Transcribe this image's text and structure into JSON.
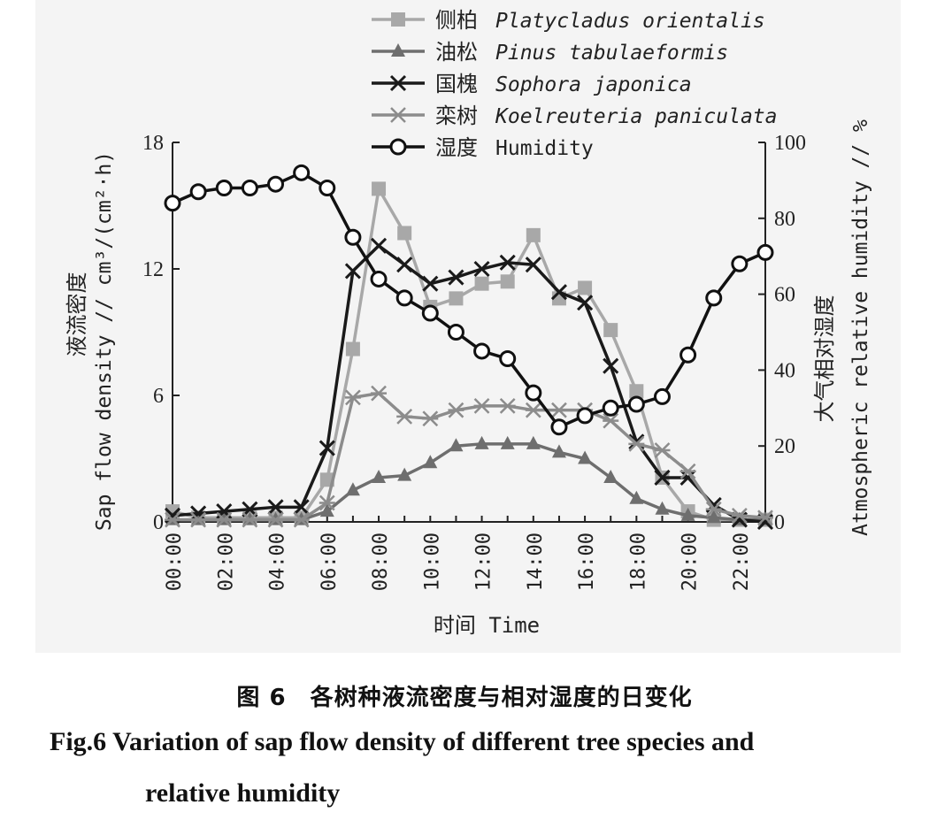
{
  "chart_data": {
    "type": "line",
    "x": [
      "00:00",
      "01:00",
      "02:00",
      "03:00",
      "04:00",
      "05:00",
      "06:00",
      "07:00",
      "08:00",
      "09:00",
      "10:00",
      "11:00",
      "12:00",
      "13:00",
      "14:00",
      "15:00",
      "16:00",
      "17:00",
      "18:00",
      "19:00",
      "20:00",
      "21:00",
      "22:00",
      "23:00"
    ],
    "x_tick_labels": [
      "00:00",
      "02:00",
      "04:00",
      "06:00",
      "08:00",
      "10:00",
      "12:00",
      "14:00",
      "16:00",
      "18:00",
      "20:00",
      "22:00"
    ],
    "xlabel": "时间 Time",
    "ylabel_left": [
      "液流密度",
      "Sap flow density // cm³/(cm²·h)"
    ],
    "ylabel_right": [
      "大气相对湿度",
      "Atmospheric relative humidity // %"
    ],
    "ylim_left": [
      0,
      18
    ],
    "ylim_right": [
      0,
      100
    ],
    "yticks_left": [
      "0",
      "6",
      "12",
      "18"
    ],
    "yticks_right": [
      "0",
      "20",
      "40",
      "60",
      "80",
      "100"
    ],
    "legend_position": "top-center",
    "series": [
      {
        "name_cn": "侧柏",
        "name_latin": "Platycladus orientalis",
        "axis": "left",
        "marker": "square",
        "color": "#a8a8a8",
        "values": [
          0.5,
          0.2,
          0.2,
          0.2,
          0.2,
          0.2,
          2.0,
          8.2,
          15.8,
          13.7,
          10.2,
          10.6,
          11.3,
          11.4,
          13.6,
          10.6,
          11.1,
          9.1,
          6.2,
          2.1,
          0.5,
          0.1,
          0.1,
          0.1
        ]
      },
      {
        "name_cn": "油松",
        "name_latin": "Pinus tabulaeformis",
        "axis": "left",
        "marker": "triangle",
        "color": "#6e6e6e",
        "values": [
          0.1,
          0.1,
          0.1,
          0.1,
          0.1,
          0.1,
          0.5,
          1.5,
          2.1,
          2.2,
          2.8,
          3.6,
          3.7,
          3.7,
          3.7,
          3.3,
          3.0,
          2.1,
          1.1,
          0.6,
          0.3,
          0.2,
          0.1,
          0.1
        ]
      },
      {
        "name_cn": "国槐",
        "name_latin": "Sophora japonica",
        "axis": "left",
        "marker": "x",
        "color": "#1a1a1a",
        "values": [
          0.3,
          0.4,
          0.5,
          0.6,
          0.7,
          0.7,
          3.5,
          11.9,
          13.1,
          12.2,
          11.3,
          11.6,
          12.0,
          12.3,
          12.2,
          10.9,
          10.4,
          7.4,
          3.8,
          2.1,
          2.1,
          0.8,
          0.1,
          0.0
        ]
      },
      {
        "name_cn": "栾树",
        "name_latin": "Koelreuteria paniculata",
        "axis": "left",
        "marker": "asterisk",
        "color": "#8c8c8c",
        "values": [
          0.1,
          0.1,
          0.1,
          0.1,
          0.1,
          0.1,
          0.9,
          5.9,
          6.1,
          5.0,
          4.9,
          5.3,
          5.5,
          5.5,
          5.3,
          5.3,
          5.3,
          4.8,
          3.7,
          3.4,
          2.4,
          0.6,
          0.3,
          0.2
        ]
      },
      {
        "name_cn": "湿度",
        "name_latin": "Humidity",
        "axis": "right",
        "marker": "circle",
        "color": "#111111",
        "values": [
          84,
          87,
          88,
          88,
          89,
          92,
          88,
          75,
          64,
          59,
          55,
          50,
          45,
          43,
          34,
          25,
          28,
          30,
          31,
          33,
          44,
          59,
          68,
          71
        ]
      }
    ]
  },
  "caption": {
    "cn": "图 6　各树种液流密度与相对湿度的日变化",
    "en_line1": "Fig.6    Variation of sap flow density of different tree species and",
    "en_line2": "relative humidity"
  }
}
